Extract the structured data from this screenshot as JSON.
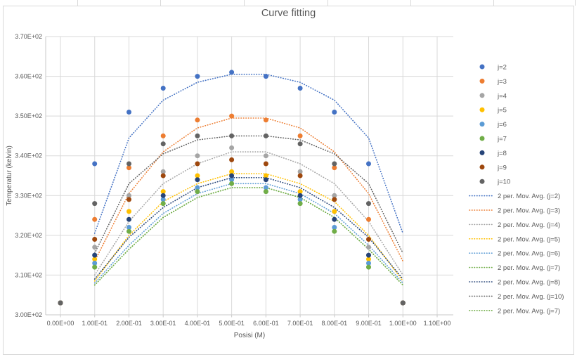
{
  "chart": {
    "title": "Curve fitting",
    "x_axis": {
      "title": "Posisi (M)",
      "tick_labels": [
        "0.00E+00",
        "1.00E-01",
        "2.00E-01",
        "3.00E-01",
        "4.00E-01",
        "5.00E-01",
        "6.00E-01",
        "7.00E-01",
        "8.00E-01",
        "9.00E-01",
        "1.00E+00",
        "1.10E+00"
      ]
    },
    "y_axis": {
      "title": "Temperatur (kelvin)",
      "tick_labels": [
        "3.70E+02",
        "3.60E+02",
        "3.50E+02",
        "3.40E+02",
        "3.30E+02",
        "3.20E+02",
        "3.10E+02",
        "3.00E+02"
      ]
    }
  },
  "chart_data": {
    "type": "scatter",
    "title": "Curve fitting",
    "xlabel": "Posisi (M)",
    "ylabel": "Temperatur (kelvin)",
    "xlim": [
      0,
      1.1
    ],
    "ylim": [
      300,
      370
    ],
    "x_tick_step": 0.1,
    "y_tick_step": 10,
    "grid": true,
    "legend_position": "right",
    "x": [
      0.0,
      0.1,
      0.2,
      0.3,
      0.4,
      0.5,
      0.6,
      0.7,
      0.8,
      0.9,
      1.0
    ],
    "series": [
      {
        "name": "j=2",
        "color": "#4472C4",
        "values": [
          303,
          338,
          351,
          357,
          360,
          361,
          360,
          357,
          351,
          338,
          303
        ]
      },
      {
        "name": "j=3",
        "color": "#ED7D31",
        "values": [
          303,
          324,
          337,
          345,
          349,
          350,
          349,
          345,
          337,
          324,
          303
        ]
      },
      {
        "name": "j=4",
        "color": "#A5A5A5",
        "values": [
          303,
          317,
          330,
          336,
          340,
          342,
          340,
          336,
          330,
          317,
          303
        ]
      },
      {
        "name": "j=5",
        "color": "#FFC000",
        "values": [
          303,
          314,
          326,
          331,
          335,
          336,
          335,
          331,
          326,
          314,
          303
        ]
      },
      {
        "name": "j=6",
        "color": "#5B9BD5",
        "values": [
          303,
          313,
          322,
          329,
          332,
          334,
          332,
          329,
          322,
          313,
          303
        ]
      },
      {
        "name": "j=7",
        "color": "#70AD47",
        "values": [
          303,
          312,
          321,
          328,
          331,
          333,
          331,
          328,
          321,
          312,
          303
        ]
      },
      {
        "name": "j=8",
        "color": "#264478",
        "values": [
          303,
          315,
          324,
          330,
          334,
          335,
          334,
          330,
          324,
          315,
          303
        ]
      },
      {
        "name": "j=9",
        "color": "#9E480E",
        "values": [
          303,
          319,
          329,
          335,
          338,
          339,
          338,
          335,
          329,
          319,
          303
        ]
      },
      {
        "name": "j=10",
        "color": "#636363",
        "values": [
          303,
          328,
          338,
          343,
          345,
          345,
          345,
          343,
          338,
          328,
          303
        ]
      }
    ],
    "moving_average_period": 2,
    "trendlines": [
      {
        "label": "2 per. Mov. Avg. (j=2)",
        "series": "j=2",
        "color": "#4472C4"
      },
      {
        "label": "2 per. Mov. Avg. (j=3)",
        "series": "j=3",
        "color": "#ED7D31"
      },
      {
        "label": "2 per. Mov. Avg. (j=4)",
        "series": "j=4",
        "color": "#A5A5A5"
      },
      {
        "label": "2 per. Mov. Avg. (j=5)",
        "series": "j=5",
        "color": "#FFC000"
      },
      {
        "label": "2 per. Mov. Avg. (j=6)",
        "series": "j=6",
        "color": "#5B9BD5"
      },
      {
        "label": "2 per. Mov. Avg. (j=7)",
        "series": "j=7",
        "color": "#70AD47"
      },
      {
        "label": "2 per. Mov. Avg. (j=8)",
        "series": "j=8",
        "color": "#264478"
      },
      {
        "label": "2 per. Mov. Avg. (j=10)",
        "series": "j=10",
        "color": "#636363"
      },
      {
        "label": "2 per. Mov. Avg. (j=7)",
        "series": "j=7",
        "color": "#70AD47"
      }
    ]
  },
  "colors": {
    "gridline": "#D9D9D9",
    "axis_line": "#C9C9C9",
    "text": "#595959"
  }
}
